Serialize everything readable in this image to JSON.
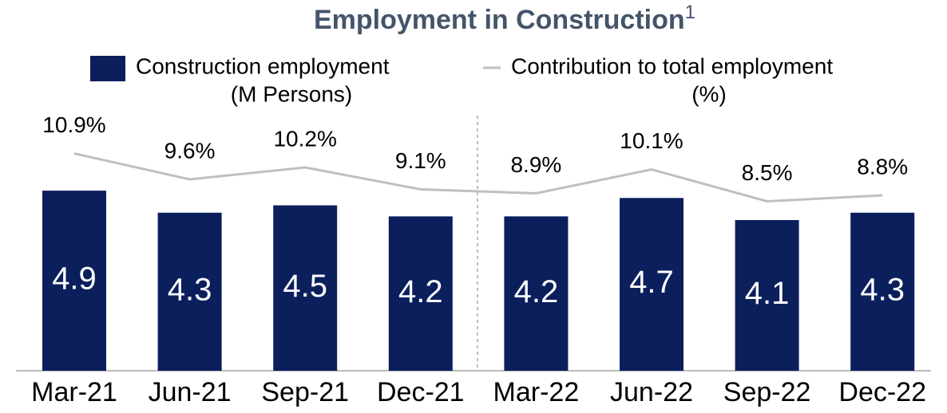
{
  "chart_data": {
    "type": "bar_line",
    "title": "Employment in Construction",
    "title_note": "1",
    "categories": [
      "Mar-21",
      "Jun-21",
      "Sep-21",
      "Dec-21",
      "Mar-22",
      "Jun-22",
      "Sep-22",
      "Dec-22"
    ],
    "series": [
      {
        "name": [
          "Construction employment",
          "(M Persons)"
        ],
        "type": "bar",
        "color": "#0b1f5c",
        "values": [
          4.9,
          4.3,
          4.5,
          4.2,
          4.2,
          4.7,
          4.1,
          4.3
        ]
      },
      {
        "name": [
          "Contribution to total employment",
          "(%)"
        ],
        "type": "line",
        "axis": "y2",
        "color": "#bfbfbf",
        "values": [
          10.9,
          9.6,
          10.2,
          9.1,
          8.9,
          10.1,
          8.5,
          8.8
        ],
        "value_labels": [
          "10.9%",
          "9.6%",
          "10.2%",
          "9.1%",
          "8.9%",
          "10.1%",
          "8.5%",
          "8.8%"
        ]
      }
    ]
  }
}
